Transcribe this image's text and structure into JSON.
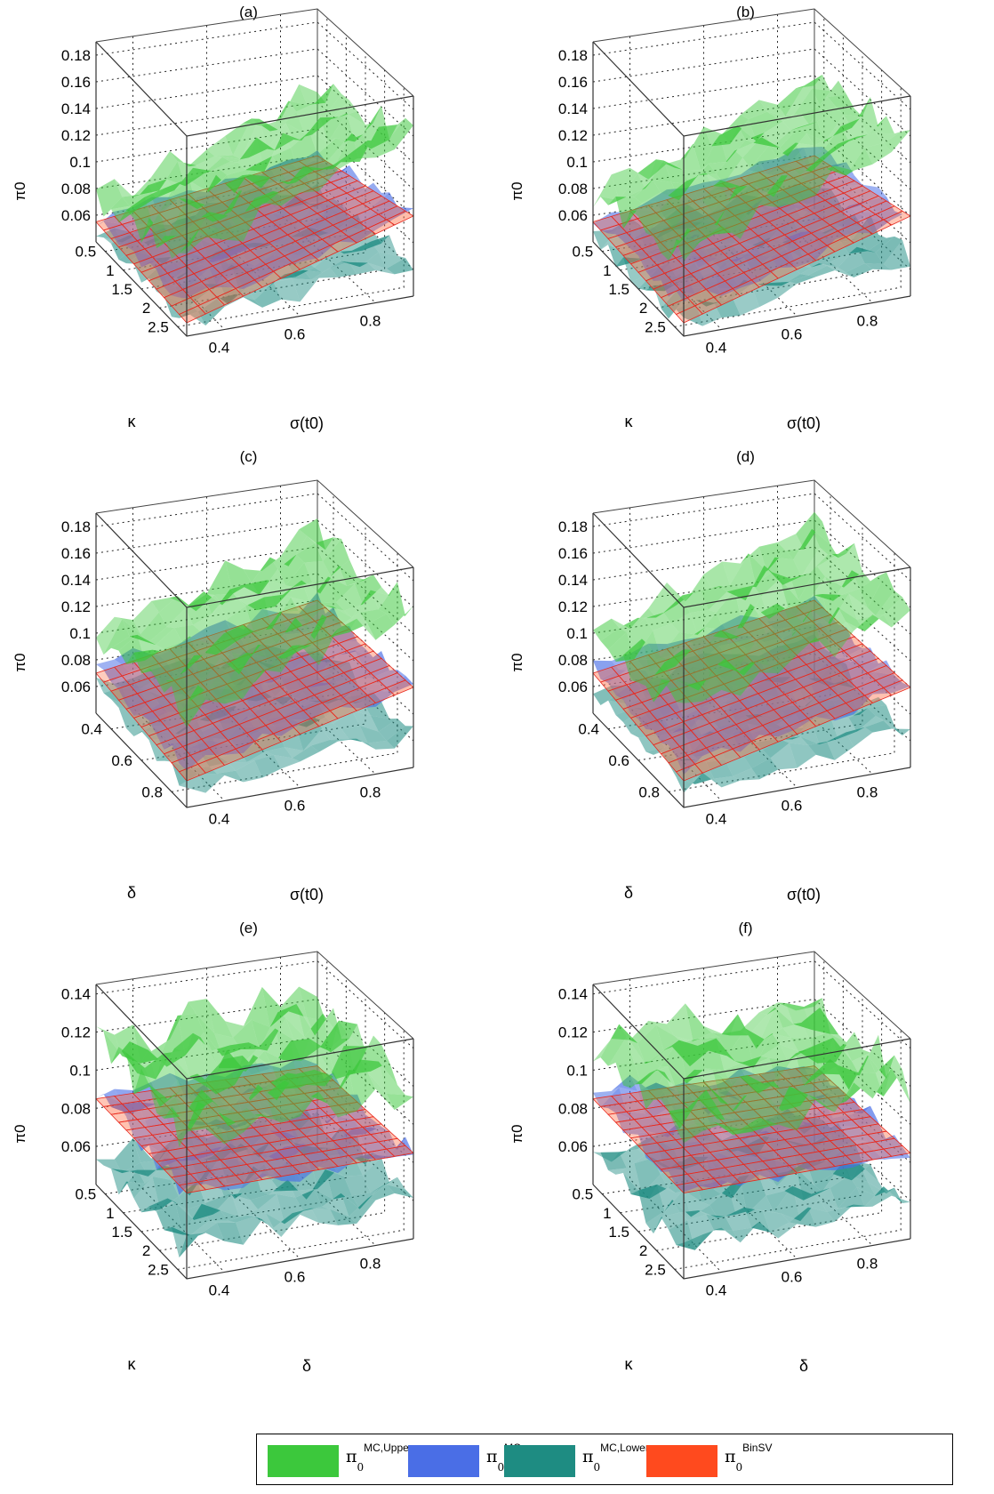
{
  "chart_data": [
    {
      "type": "surface3d",
      "title": "(a)",
      "zlabel": "π0",
      "xlabel": "κ",
      "ylabel": "σ(t0)",
      "xticks": [
        "0.5",
        "1",
        "1.5",
        "2",
        "2.5"
      ],
      "yticks": [
        "0.4",
        "0.6",
        "0.8"
      ],
      "zticks": [
        "0.06",
        "0.08",
        "0.1",
        "0.12",
        "0.14",
        "0.16",
        "0.18"
      ],
      "zlim": [
        0.04,
        0.19
      ],
      "series": [
        {
          "name": "π0 MC,Upper",
          "corner_values": [
            0.07,
            0.1,
            0.13,
            0.16
          ]
        },
        {
          "name": "π0 MC",
          "corner_values": [
            0.055,
            0.065,
            0.085,
            0.1
          ]
        },
        {
          "name": "π0 MC,Lower",
          "corner_values": [
            0.045,
            0.05,
            0.06,
            0.065
          ]
        },
        {
          "name": "π0 BinSV",
          "corner_values": [
            0.055,
            0.05,
            0.08,
            0.1
          ]
        }
      ]
    },
    {
      "type": "surface3d",
      "title": "(b)",
      "zlabel": "π0",
      "xlabel": "κ",
      "ylabel": "σ(t0)",
      "xticks": [
        "0.5",
        "1",
        "1.5",
        "2",
        "2.5"
      ],
      "yticks": [
        "0.4",
        "0.6",
        "0.8"
      ],
      "zticks": [
        "0.06",
        "0.08",
        "0.1",
        "0.12",
        "0.14",
        "0.16",
        "0.18"
      ],
      "zlim": [
        0.04,
        0.19
      ],
      "series": [
        {
          "name": "π0 MC,Upper",
          "corner_values": [
            0.075,
            0.1,
            0.14,
            0.16
          ]
        },
        {
          "name": "π0 MC",
          "corner_values": [
            0.055,
            0.065,
            0.09,
            0.1
          ]
        },
        {
          "name": "π0 MC,Lower",
          "corner_values": [
            0.045,
            0.05,
            0.06,
            0.07
          ]
        },
        {
          "name": "π0 BinSV",
          "corner_values": [
            0.055,
            0.05,
            0.08,
            0.1
          ]
        }
      ]
    },
    {
      "type": "surface3d",
      "title": "(c)",
      "zlabel": "π0",
      "xlabel": "δ",
      "ylabel": "σ(t0)",
      "xticks": [
        "0.4",
        "0.6",
        "0.8"
      ],
      "yticks": [
        "0.4",
        "0.6",
        "0.8"
      ],
      "zticks": [
        "0.06",
        "0.08",
        "0.1",
        "0.12",
        "0.14",
        "0.16",
        "0.18"
      ],
      "zlim": [
        0.04,
        0.19
      ],
      "series": [
        {
          "name": "π0 MC,Upper",
          "corner_values": [
            0.1,
            0.11,
            0.15,
            0.16
          ]
        },
        {
          "name": "π0 MC",
          "corner_values": [
            0.075,
            0.07,
            0.1,
            0.1
          ]
        },
        {
          "name": "π0 MC,Lower",
          "corner_values": [
            0.06,
            0.055,
            0.07,
            0.065
          ]
        },
        {
          "name": "π0 BinSV",
          "corner_values": [
            0.07,
            0.06,
            0.1,
            0.1
          ]
        }
      ]
    },
    {
      "type": "surface3d",
      "title": "(d)",
      "zlabel": "π0",
      "xlabel": "δ",
      "ylabel": "σ(t0)",
      "xticks": [
        "0.4",
        "0.6",
        "0.8"
      ],
      "yticks": [
        "0.4",
        "0.6",
        "0.8"
      ],
      "zticks": [
        "0.06",
        "0.08",
        "0.1",
        "0.12",
        "0.14",
        "0.16",
        "0.18"
      ],
      "zlim": [
        0.04,
        0.19
      ],
      "series": [
        {
          "name": "π0 MC,Upper",
          "corner_values": [
            0.1,
            0.11,
            0.16,
            0.16
          ]
        },
        {
          "name": "π0 MC",
          "corner_values": [
            0.075,
            0.07,
            0.1,
            0.1
          ]
        },
        {
          "name": "π0 MC,Lower",
          "corner_values": [
            0.06,
            0.055,
            0.07,
            0.065
          ]
        },
        {
          "name": "π0 BinSV",
          "corner_values": [
            0.07,
            0.06,
            0.1,
            0.1
          ]
        }
      ]
    },
    {
      "type": "surface3d",
      "title": "(e)",
      "zlabel": "π0",
      "xlabel": "κ",
      "ylabel": "δ",
      "xticks": [
        "0.5",
        "1",
        "1.5",
        "2",
        "2.5"
      ],
      "yticks": [
        "0.4",
        "0.6",
        "0.8"
      ],
      "zticks": [
        "0.06",
        "0.08",
        "0.1",
        "0.12",
        "0.14"
      ],
      "zlim": [
        0.04,
        0.145
      ],
      "series": [
        {
          "name": "π0 MC,Upper",
          "corner_values": [
            0.115,
            0.115,
            0.12,
            0.12
          ]
        },
        {
          "name": "π0 MC",
          "corner_values": [
            0.09,
            0.085,
            0.085,
            0.085
          ]
        },
        {
          "name": "π0 MC,Lower",
          "corner_values": [
            0.055,
            0.055,
            0.06,
            0.06
          ]
        },
        {
          "name": "π0 BinSV",
          "corner_values": [
            0.085,
            0.085,
            0.085,
            0.085
          ]
        }
      ]
    },
    {
      "type": "surface3d",
      "title": "(f)",
      "zlabel": "π0",
      "xlabel": "κ",
      "ylabel": "δ",
      "xticks": [
        "0.5",
        "1",
        "1.5",
        "2",
        "2.5"
      ],
      "yticks": [
        "0.4",
        "0.6",
        "0.8"
      ],
      "zticks": [
        "0.06",
        "0.08",
        "0.1",
        "0.12",
        "0.14"
      ],
      "zlim": [
        0.04,
        0.145
      ],
      "series": [
        {
          "name": "π0 MC,Upper",
          "corner_values": [
            0.115,
            0.115,
            0.12,
            0.12
          ]
        },
        {
          "name": "π0 MC",
          "corner_values": [
            0.09,
            0.085,
            0.085,
            0.085
          ]
        },
        {
          "name": "π0 MC,Lower",
          "corner_values": [
            0.055,
            0.055,
            0.06,
            0.06
          ]
        },
        {
          "name": "π0 BinSV",
          "corner_values": [
            0.085,
            0.085,
            0.085,
            0.085
          ]
        }
      ]
    }
  ],
  "legend": [
    {
      "base": "π",
      "sub": "0",
      "sup": "MC,Upper",
      "color": "#3cc83c"
    },
    {
      "base": "π",
      "sub": "0",
      "sup": "MC",
      "color": "#4a6ee6"
    },
    {
      "base": "π",
      "sub": "0",
      "sup": "MC,Lower",
      "color": "#1e8c82"
    },
    {
      "base": "π",
      "sub": "0",
      "sup": "BinSV",
      "color": "#ff4a1e"
    }
  ]
}
